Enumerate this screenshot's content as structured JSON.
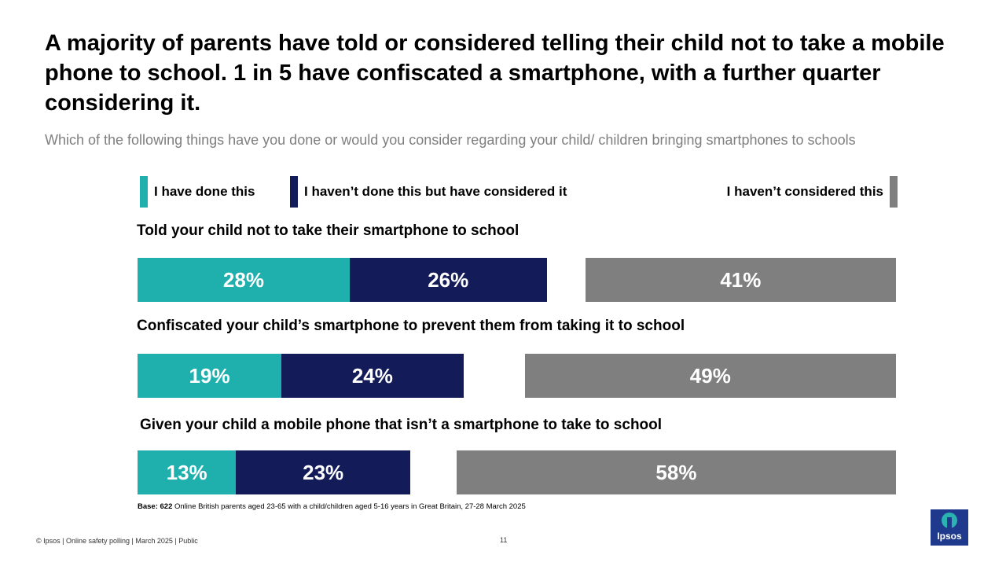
{
  "title": "A majority of parents have told or considered telling their child not to take a mobile phone to school. 1 in 5 have confiscated a smartphone, with a further quarter considering it.",
  "subtitle": "Which of the following things have you done or would you consider regarding your child/ children bringing smartphones to schools",
  "colors": {
    "done": "#1fb0ae",
    "considered": "#131b58",
    "not_considered": "#7f7f7f"
  },
  "chart_data": {
    "type": "bar",
    "orientation": "horizontal",
    "legend": [
      "I have done this",
      "I haven’t done this but have considered it",
      "I haven’t considered this"
    ],
    "legend_position": "top",
    "categories": [
      "Told your child not to take their smartphone to school",
      "Confiscated your child’s smartphone to prevent them from taking it to school",
      "Given your child a mobile phone that isn’t a smartphone to take to school"
    ],
    "series": [
      {
        "name": "I have done this",
        "values": [
          28,
          19,
          13
        ],
        "labels": [
          "28%",
          "19%",
          "13%"
        ]
      },
      {
        "name": "I haven’t done this but have considered it",
        "values": [
          26,
          24,
          23
        ],
        "labels": [
          "26%",
          "24%",
          "23%"
        ]
      },
      {
        "name": "I haven’t considered this",
        "values": [
          41,
          49,
          58
        ],
        "labels": [
          "41%",
          "49%",
          "58%"
        ]
      }
    ],
    "xlim": [
      0,
      100
    ],
    "grid": false
  },
  "base_note": {
    "label": "Base: 622",
    "text": " Online British parents aged 23-65 with a child/children aged 5-16 years in Great Britain, 27-28 March 2025"
  },
  "footer": "© Ipsos | Online safety polling | March 2025 | Public",
  "page_number": "11",
  "logo_text": "Ipsos"
}
